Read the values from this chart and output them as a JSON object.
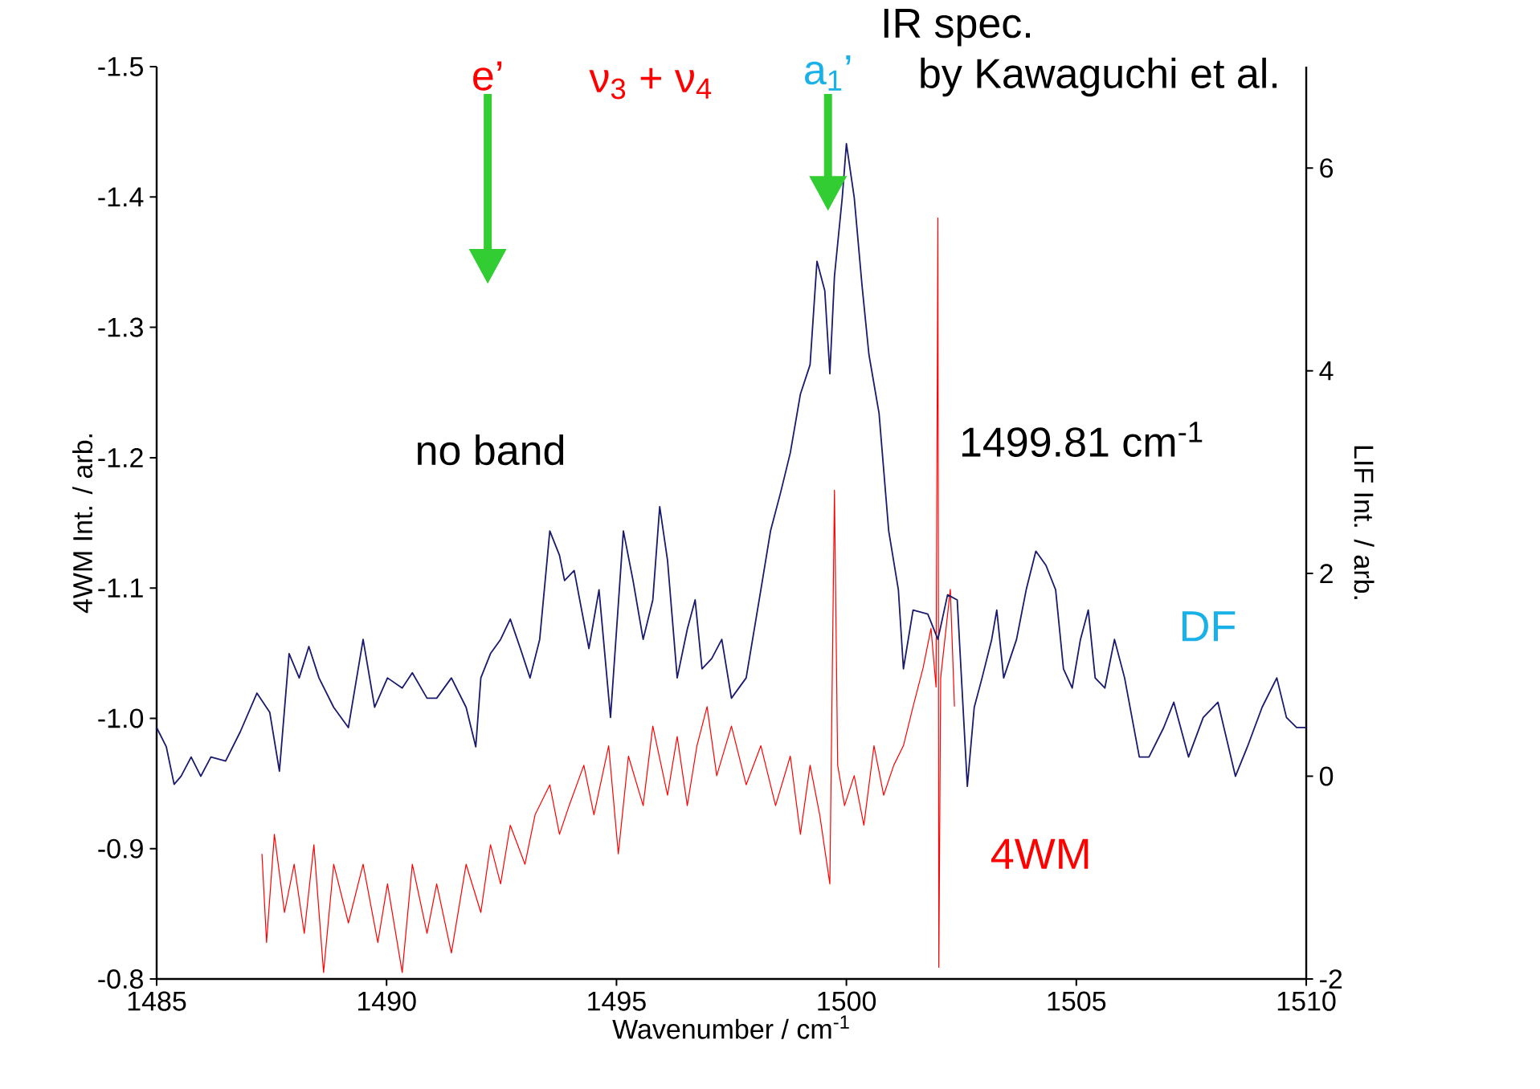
{
  "chart_data": {
    "type": "line",
    "xlabel": "Wavenumber / cm$^{-1}$",
    "ylabel": "4WM Int. / arb.",
    "y2label": "LIF Int. / arb.",
    "xlim": [
      1485,
      1510
    ],
    "xticks": [
      1485,
      1490,
      1495,
      1500,
      1505,
      1510
    ],
    "ylim": [
      -0.8,
      -1.5
    ],
    "yticks": [
      -1.5,
      -1.4,
      -1.3,
      -1.2,
      -1.1,
      {
        "value": -1.0,
        "label": "-1.0"
      },
      -0.9,
      -0.8
    ],
    "y2lim": [
      -2,
      7
    ],
    "y2ticks": [
      -2,
      0,
      2,
      4,
      6
    ],
    "annotations": [
      "e’",
      "ν$_{3}$ + ν$_{4}$",
      "a$_{1}$’",
      "IR spec.",
      "by Kawaguchi et al.",
      "no band",
      "1499.81 cm$^{-1}$"
    ],
    "series": [
      {
        "name": "DF",
        "color": "#1a1a6e",
        "axis": "y2",
        "x": [
          1485.0,
          1485.21,
          1485.38,
          1485.53,
          1485.75,
          1485.96,
          1486.18,
          1486.5,
          1486.82,
          1487.18,
          1487.46,
          1487.67,
          1487.88,
          1488.1,
          1488.31,
          1488.53,
          1488.85,
          1489.17,
          1489.49,
          1489.74,
          1490.02,
          1490.34,
          1490.56,
          1490.88,
          1491.09,
          1491.41,
          1491.73,
          1491.94,
          1492.05,
          1492.26,
          1492.48,
          1492.69,
          1492.91,
          1493.12,
          1493.33,
          1493.55,
          1493.76,
          1493.87,
          1494.08,
          1494.4,
          1494.62,
          1494.87,
          1495.15,
          1495.36,
          1495.58,
          1495.79,
          1495.94,
          1496.11,
          1496.32,
          1496.54,
          1496.71,
          1496.86,
          1497.07,
          1497.29,
          1497.5,
          1497.82,
          1498.14,
          1498.35,
          1498.57,
          1498.78,
          1499.0,
          1499.21,
          1499.36,
          1499.53,
          1499.64,
          1499.74,
          1499.91,
          1500.0,
          1500.17,
          1500.34,
          1500.49,
          1500.71,
          1500.92,
          1501.13,
          1501.24,
          1501.45,
          1501.77,
          1501.99,
          1502.2,
          1502.41,
          1502.63,
          1502.78,
          1502.95,
          1503.16,
          1503.27,
          1503.42,
          1503.7,
          1503.91,
          1504.12,
          1504.34,
          1504.55,
          1504.72,
          1504.91,
          1505.09,
          1505.26,
          1505.41,
          1505.62,
          1505.83,
          1506.05,
          1506.37,
          1506.58,
          1506.9,
          1507.12,
          1507.44,
          1507.76,
          1508.08,
          1508.46,
          1508.72,
          1509.04,
          1509.36,
          1509.57,
          1509.79,
          1510.0
        ],
        "values": [
          0.48,
          0.29,
          -0.08,
          0,
          0.19,
          0,
          0.19,
          0.15,
          0.44,
          0.82,
          0.63,
          0.05,
          1.21,
          0.97,
          1.28,
          0.97,
          0.68,
          0.48,
          1.35,
          0.68,
          0.97,
          0.87,
          1.02,
          0.77,
          0.77,
          0.97,
          0.68,
          0.29,
          0.97,
          1.21,
          1.35,
          1.55,
          1.26,
          0.97,
          1.35,
          2.42,
          2.18,
          1.93,
          2.03,
          1.26,
          1.84,
          0.58,
          2.42,
          1.93,
          1.35,
          1.74,
          2.66,
          2.13,
          0.97,
          1.45,
          1.74,
          1.06,
          1.16,
          1.35,
          0.77,
          0.97,
          1.84,
          2.42,
          2.8,
          3.19,
          3.77,
          4.06,
          5.08,
          4.79,
          3.97,
          4.93,
          5.71,
          6.24,
          5.71,
          4.84,
          4.16,
          3.58,
          2.42,
          1.84,
          1.06,
          1.64,
          1.6,
          1.35,
          1.79,
          1.74,
          -0.1,
          0.68,
          0.97,
          1.35,
          1.64,
          0.97,
          1.35,
          1.84,
          2.22,
          2.08,
          1.84,
          1.06,
          0.87,
          1.35,
          1.64,
          0.97,
          0.87,
          1.35,
          0.97,
          0.19,
          0.19,
          0.48,
          0.73,
          0.19,
          0.58,
          0.73,
          0,
          0.29,
          0.68,
          0.97,
          0.58,
          0.48,
          0.48
        ]
      },
      {
        "name": "4WM",
        "color": "#ff0000",
        "axis": "y",
        "x": [
          1487.29,
          1487.39,
          1487.56,
          1487.78,
          1487.99,
          1488.21,
          1488.42,
          1488.63,
          1488.85,
          1489.17,
          1489.49,
          1489.81,
          1490.02,
          1490.34,
          1490.56,
          1490.88,
          1491.09,
          1491.41,
          1491.73,
          1492.05,
          1492.26,
          1492.48,
          1492.69,
          1493.01,
          1493.23,
          1493.55,
          1493.76,
          1493.97,
          1494.29,
          1494.51,
          1494.83,
          1495.04,
          1495.26,
          1495.58,
          1495.79,
          1496.11,
          1496.32,
          1496.54,
          1496.75,
          1496.97,
          1497.18,
          1497.5,
          1497.82,
          1498.14,
          1498.46,
          1498.78,
          1499.0,
          1499.21,
          1499.42,
          1499.64,
          1499.74,
          1499.81,
          1499.96,
          1500.17,
          1500.38,
          1500.6,
          1500.81,
          1501.03,
          1501.24,
          1501.45,
          1501.67,
          1501.84,
          1501.95,
          1501.99,
          1502.01,
          1502.05,
          1502.26,
          1502.35
        ],
        "values": [
          -0.896,
          -0.828,
          -0.911,
          -0.851,
          -0.888,
          -0.835,
          -0.903,
          -0.805,
          -0.888,
          -0.843,
          -0.888,
          -0.828,
          -0.873,
          -0.805,
          -0.888,
          -0.835,
          -0.873,
          -0.82,
          -0.888,
          -0.851,
          -0.903,
          -0.873,
          -0.918,
          -0.888,
          -0.926,
          -0.949,
          -0.911,
          -0.933,
          -0.964,
          -0.926,
          -0.979,
          -0.896,
          -0.971,
          -0.933,
          -0.994,
          -0.941,
          -0.986,
          -0.933,
          -0.979,
          -1.009,
          -0.956,
          -0.994,
          -0.949,
          -0.979,
          -0.933,
          -0.971,
          -0.911,
          -0.964,
          -0.926,
          -0.873,
          -1.175,
          -0.964,
          -0.933,
          -0.956,
          -0.918,
          -0.979,
          -0.941,
          -0.964,
          -0.979,
          -1.009,
          -1.039,
          -1.069,
          -1.024,
          -1.384,
          -0.809,
          -1.031,
          -1.099,
          -1.009
        ]
      }
    ]
  }
}
